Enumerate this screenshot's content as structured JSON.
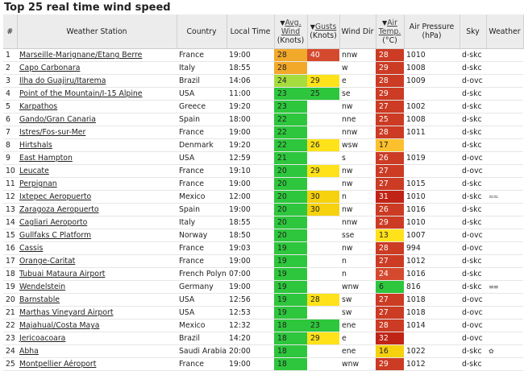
{
  "title": "Top 25 real time wind speed",
  "headers": {
    "num": "#",
    "station": "Weather Station",
    "country": "Country",
    "local_time": "Local Time",
    "wind_line1": "Avg.",
    "wind_line2": "Wind",
    "wind_line3": "(Knots)",
    "gust_line1": "Gusts",
    "gust_line2": "(Knots)",
    "wind_dir": "Wind Dir",
    "temp_line1": "Air",
    "temp_line2": "Temp.",
    "temp_line3": "(°C)",
    "pressure_line1": "Air Pressure",
    "pressure_line2": "(hPa)",
    "sky": "Sky",
    "weather": "Weather"
  },
  "colors": {
    "header_bg": "#ececec",
    "wind_green": "#2dc63c",
    "gust_orange": "#f2a92a",
    "temp_red": "#cc3b24",
    "yellow": "#ffe21a"
  },
  "rows": [
    {
      "n": "1",
      "station": "Marseille-Marignane/Etang Berre",
      "country": "France",
      "time": "19:00",
      "wind": "28",
      "wind_c": "orange",
      "gust": "40",
      "gust_c": "lred",
      "dir": "nnw",
      "temp": "28",
      "temp_c": "red",
      "press": "1010",
      "sky": "d-skc",
      "wx": ""
    },
    {
      "n": "2",
      "station": "Capo Carbonara",
      "country": "Italy",
      "time": "18:55",
      "wind": "28",
      "wind_c": "orange",
      "gust": "",
      "gust_c": "none",
      "dir": "w",
      "temp": "29",
      "temp_c": "red",
      "press": "1008",
      "sky": "d-skc",
      "wx": ""
    },
    {
      "n": "3",
      "station": "Ilha do Guajiru/Itarema",
      "country": "Brazil",
      "time": "14:06",
      "wind": "24",
      "wind_c": "ygreen",
      "gust": "29",
      "gust_c": "yellow",
      "dir": "e",
      "temp": "28",
      "temp_c": "red",
      "press": "1009",
      "sky": "d-ovc",
      "wx": ""
    },
    {
      "n": "4",
      "station": "Point of the Mountain/I-15 Alpine",
      "country": "USA",
      "time": "11:00",
      "wind": "23",
      "wind_c": "green",
      "gust": "25",
      "gust_c": "green",
      "dir": "se",
      "temp": "29",
      "temp_c": "red",
      "press": "",
      "sky": "d-skc",
      "wx": ""
    },
    {
      "n": "5",
      "station": "Karpathos",
      "country": "Greece",
      "time": "19:20",
      "wind": "23",
      "wind_c": "green",
      "gust": "",
      "gust_c": "none",
      "dir": "nw",
      "temp": "27",
      "temp_c": "red",
      "press": "1002",
      "sky": "d-skc",
      "wx": ""
    },
    {
      "n": "6",
      "station": "Gando/Gran Canaria",
      "country": "Spain",
      "time": "18:00",
      "wind": "22",
      "wind_c": "green",
      "gust": "",
      "gust_c": "none",
      "dir": "nne",
      "temp": "25",
      "temp_c": "red",
      "press": "1008",
      "sky": "d-skc",
      "wx": ""
    },
    {
      "n": "7",
      "station": "Istres/Fos-sur-Mer",
      "country": "France",
      "time": "19:00",
      "wind": "22",
      "wind_c": "green",
      "gust": "",
      "gust_c": "none",
      "dir": "nnw",
      "temp": "28",
      "temp_c": "red",
      "press": "1011",
      "sky": "d-skc",
      "wx": ""
    },
    {
      "n": "8",
      "station": "Hirtshals",
      "country": "Denmark",
      "time": "19:20",
      "wind": "22",
      "wind_c": "green",
      "gust": "26",
      "gust_c": "yellow",
      "dir": "wsw",
      "temp": "17",
      "temp_c": "gold",
      "press": "",
      "sky": "d-skc",
      "wx": ""
    },
    {
      "n": "9",
      "station": "East Hampton",
      "country": "USA",
      "time": "12:59",
      "wind": "21",
      "wind_c": "green",
      "gust": "",
      "gust_c": "none",
      "dir": "s",
      "temp": "26",
      "temp_c": "red",
      "press": "1019",
      "sky": "d-ovc",
      "wx": ""
    },
    {
      "n": "10",
      "station": "Leucate",
      "country": "France",
      "time": "19:10",
      "wind": "20",
      "wind_c": "green",
      "gust": "29",
      "gust_c": "yellow",
      "dir": "nw",
      "temp": "27",
      "temp_c": "red",
      "press": "",
      "sky": "d-ovc",
      "wx": ""
    },
    {
      "n": "11",
      "station": "Perpignan",
      "country": "France",
      "time": "19:00",
      "wind": "20",
      "wind_c": "green",
      "gust": "",
      "gust_c": "none",
      "dir": "nw",
      "temp": "27",
      "temp_c": "red",
      "press": "1015",
      "sky": "d-skc",
      "wx": ""
    },
    {
      "n": "12",
      "station": "Ixtepec Aeropuerto",
      "country": "Mexico",
      "time": "12:00",
      "wind": "20",
      "wind_c": "green",
      "gust": "30",
      "gust_c": "amber",
      "dir": "n",
      "temp": "31",
      "temp_c": "dred",
      "press": "1010",
      "sky": "d-skc",
      "wx": "≈≈"
    },
    {
      "n": "13",
      "station": "Zaragoza Aeropuerto",
      "country": "Spain",
      "time": "19:00",
      "wind": "20",
      "wind_c": "green",
      "gust": "30",
      "gust_c": "amber",
      "dir": "nw",
      "temp": "26",
      "temp_c": "red",
      "press": "1016",
      "sky": "d-skc",
      "wx": ""
    },
    {
      "n": "14",
      "station": "Cagliari Aeroporto",
      "country": "Italy",
      "time": "18:55",
      "wind": "20",
      "wind_c": "green",
      "gust": "",
      "gust_c": "none",
      "dir": "nnw",
      "temp": "29",
      "temp_c": "red",
      "press": "1010",
      "sky": "d-skc",
      "wx": ""
    },
    {
      "n": "15",
      "station": "Gullfaks C Platform",
      "country": "Norway",
      "time": "18:50",
      "wind": "20",
      "wind_c": "green",
      "gust": "",
      "gust_c": "none",
      "dir": "sse",
      "temp": "13",
      "temp_c": "yellow",
      "press": "1007",
      "sky": "d-ovc",
      "wx": ""
    },
    {
      "n": "16",
      "station": "Cassis",
      "country": "France",
      "time": "19:03",
      "wind": "19",
      "wind_c": "green",
      "gust": "",
      "gust_c": "none",
      "dir": "nw",
      "temp": "28",
      "temp_c": "red",
      "press": "994",
      "sky": "d-ovc",
      "wx": ""
    },
    {
      "n": "17",
      "station": "Orange-Caritat",
      "country": "France",
      "time": "19:00",
      "wind": "19",
      "wind_c": "green",
      "gust": "",
      "gust_c": "none",
      "dir": "n",
      "temp": "27",
      "temp_c": "red",
      "press": "1012",
      "sky": "d-skc",
      "wx": ""
    },
    {
      "n": "18",
      "station": "Tubuai Mataura Airport",
      "country": "French Polynesia",
      "time": "07:00",
      "wind": "19",
      "wind_c": "green",
      "gust": "",
      "gust_c": "none",
      "dir": "n",
      "temp": "24",
      "temp_c": "lred",
      "press": "1016",
      "sky": "d-skc",
      "wx": ""
    },
    {
      "n": "19",
      "station": "Wendelstein",
      "country": "Germany",
      "time": "19:00",
      "wind": "19",
      "wind_c": "green",
      "gust": "",
      "gust_c": "none",
      "dir": "wnw",
      "temp": "6",
      "temp_c": "green",
      "press": "816",
      "sky": "d-skc",
      "wx": "≡≡"
    },
    {
      "n": "20",
      "station": "Barnstable",
      "country": "USA",
      "time": "12:56",
      "wind": "19",
      "wind_c": "green",
      "gust": "28",
      "gust_c": "yellow",
      "dir": "sw",
      "temp": "27",
      "temp_c": "red",
      "press": "1018",
      "sky": "d-ovc",
      "wx": ""
    },
    {
      "n": "21",
      "station": "Marthas Vineyard Airport",
      "country": "USA",
      "time": "12:53",
      "wind": "19",
      "wind_c": "green",
      "gust": "",
      "gust_c": "none",
      "dir": "sw",
      "temp": "27",
      "temp_c": "red",
      "press": "1018",
      "sky": "d-ovc",
      "wx": ""
    },
    {
      "n": "22",
      "station": "Majahual/Costa Maya",
      "country": "Mexico",
      "time": "12:32",
      "wind": "18",
      "wind_c": "green",
      "gust": "23",
      "gust_c": "green",
      "dir": "ene",
      "temp": "28",
      "temp_c": "red",
      "press": "1014",
      "sky": "d-ovc",
      "wx": ""
    },
    {
      "n": "23",
      "station": "Jericoacoara",
      "country": "Brazil",
      "time": "14:20",
      "wind": "18",
      "wind_c": "green",
      "gust": "29",
      "gust_c": "yellow",
      "dir": "e",
      "temp": "32",
      "temp_c": "dred",
      "press": "",
      "sky": "d-ovc",
      "wx": ""
    },
    {
      "n": "24",
      "station": "Abha",
      "country": "Saudi Arabia",
      "time": "20:00",
      "wind": "18",
      "wind_c": "green",
      "gust": "",
      "gust_c": "none",
      "dir": "ene",
      "temp": "16",
      "temp_c": "amber",
      "press": "1022",
      "sky": "d-skc",
      "wx": "✿"
    },
    {
      "n": "25",
      "station": "Montpellier Aéroport",
      "country": "France",
      "time": "19:00",
      "wind": "18",
      "wind_c": "green",
      "gust": "",
      "gust_c": "none",
      "dir": "wnw",
      "temp": "29",
      "temp_c": "red",
      "press": "1012",
      "sky": "d-skc",
      "wx": ""
    }
  ]
}
